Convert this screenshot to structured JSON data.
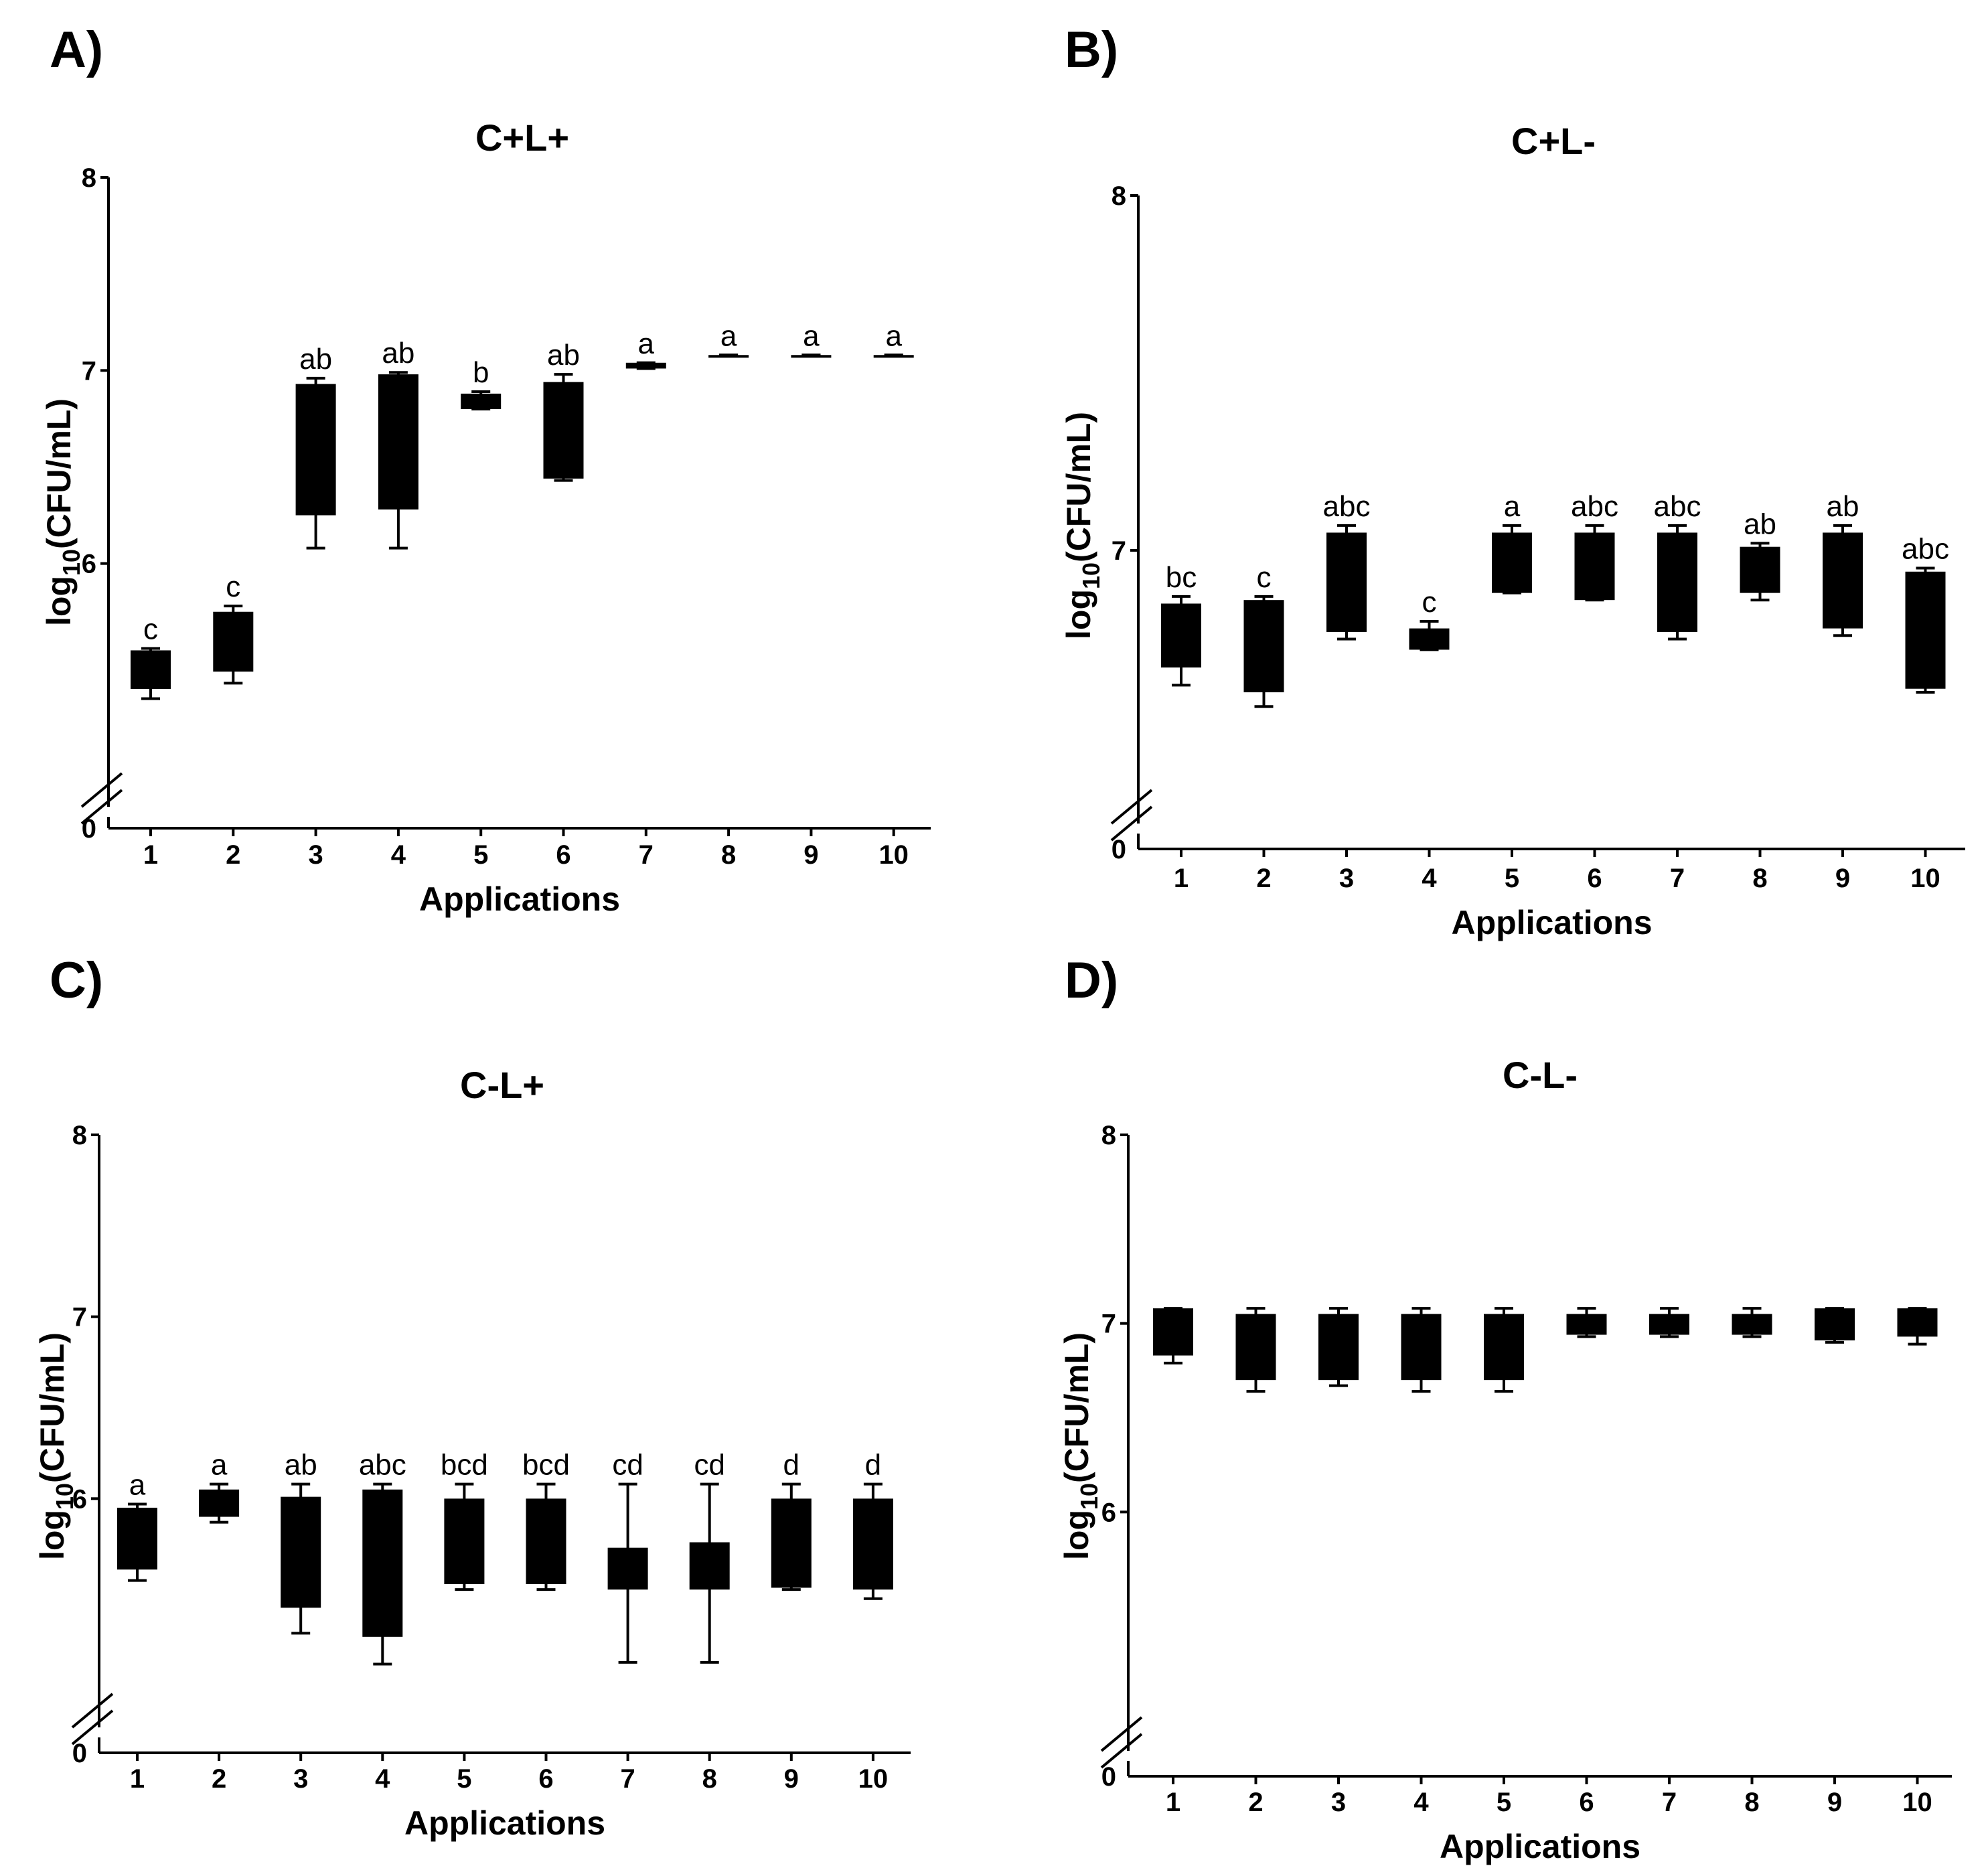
{
  "figure": {
    "panels": [
      {
        "letter": "A)",
        "title": "C+L+"
      },
      {
        "letter": "B)",
        "title": "C+L-"
      },
      {
        "letter": "C)",
        "title": "C-L+"
      },
      {
        "letter": "D)",
        "title": "C-L-"
      }
    ]
  },
  "chart_data": [
    {
      "type": "box",
      "panel": "A)",
      "title": "C+L+",
      "xlabel": "Applications",
      "ylabel": "log10(CFU/mL)",
      "categories": [
        "1",
        "2",
        "3",
        "4",
        "5",
        "6",
        "7",
        "8",
        "9",
        "10"
      ],
      "yticks": [
        0,
        6,
        7,
        8
      ],
      "y_axis_break": true,
      "ylim": [
        5,
        8
      ],
      "boxes": [
        {
          "min": 5.3,
          "q1": 5.35,
          "q3": 5.55,
          "max": 5.56
        },
        {
          "min": 5.38,
          "q1": 5.44,
          "q3": 5.75,
          "max": 5.78
        },
        {
          "min": 6.08,
          "q1": 6.25,
          "q3": 6.93,
          "max": 6.96
        },
        {
          "min": 6.08,
          "q1": 6.28,
          "q3": 6.98,
          "max": 6.99
        },
        {
          "min": 6.8,
          "q1": 6.8,
          "q3": 6.88,
          "max": 6.89
        },
        {
          "min": 6.43,
          "q1": 6.44,
          "q3": 6.94,
          "max": 6.98
        },
        {
          "min": 7.01,
          "q1": 7.01,
          "q3": 7.04,
          "max": 7.04
        },
        {
          "min": 7.08,
          "q1": 7.08,
          "q3": 7.08,
          "max": 7.08
        },
        {
          "min": 7.08,
          "q1": 7.08,
          "q3": 7.08,
          "max": 7.08
        },
        {
          "min": 7.08,
          "q1": 7.08,
          "q3": 7.08,
          "max": 7.08
        }
      ],
      "significance": [
        "c",
        "c",
        "ab",
        "ab",
        "b",
        "ab",
        "a",
        "a",
        "a",
        "a"
      ]
    },
    {
      "type": "box",
      "panel": "B)",
      "title": "C+L-",
      "xlabel": "Applications",
      "ylabel": "log10(CFU/mL)",
      "categories": [
        "1",
        "2",
        "3",
        "4",
        "5",
        "6",
        "7",
        "8",
        "9",
        "10"
      ],
      "yticks": [
        0,
        7,
        8
      ],
      "y_axis_break": true,
      "ylim": [
        6.4,
        8
      ],
      "boxes": [
        {
          "min": 6.62,
          "q1": 6.67,
          "q3": 6.85,
          "max": 6.87
        },
        {
          "min": 6.56,
          "q1": 6.6,
          "q3": 6.86,
          "max": 6.87
        },
        {
          "min": 6.75,
          "q1": 6.77,
          "q3": 7.05,
          "max": 7.07
        },
        {
          "min": 6.72,
          "q1": 6.72,
          "q3": 6.78,
          "max": 6.8
        },
        {
          "min": 6.88,
          "q1": 6.88,
          "q3": 7.05,
          "max": 7.07
        },
        {
          "min": 6.86,
          "q1": 6.86,
          "q3": 7.05,
          "max": 7.07
        },
        {
          "min": 6.75,
          "q1": 6.77,
          "q3": 7.05,
          "max": 7.07
        },
        {
          "min": 6.86,
          "q1": 6.88,
          "q3": 7.01,
          "max": 7.02
        },
        {
          "min": 6.76,
          "q1": 6.78,
          "q3": 7.05,
          "max": 7.07
        },
        {
          "min": 6.6,
          "q1": 6.61,
          "q3": 6.94,
          "max": 6.95
        }
      ],
      "significance": [
        "bc",
        "c",
        "abc",
        "c",
        "a",
        "abc",
        "abc",
        "ab",
        "ab",
        "abc"
      ]
    },
    {
      "type": "box",
      "panel": "C)",
      "title": "C-L+",
      "xlabel": "Applications",
      "ylabel": "log10(CFU/mL)",
      "categories": [
        "1",
        "2",
        "3",
        "4",
        "5",
        "6",
        "7",
        "8",
        "9",
        "10"
      ],
      "yticks": [
        0,
        6,
        7,
        8
      ],
      "y_axis_break": true,
      "ylim": [
        5,
        8
      ],
      "boxes": [
        {
          "min": 5.55,
          "q1": 5.61,
          "q3": 5.95,
          "max": 5.97
        },
        {
          "min": 5.87,
          "q1": 5.9,
          "q3": 6.05,
          "max": 6.08
        },
        {
          "min": 5.26,
          "q1": 5.4,
          "q3": 6.01,
          "max": 6.08
        },
        {
          "min": 5.09,
          "q1": 5.24,
          "q3": 6.05,
          "max": 6.08
        },
        {
          "min": 5.5,
          "q1": 5.53,
          "q3": 6.0,
          "max": 6.08
        },
        {
          "min": 5.5,
          "q1": 5.53,
          "q3": 6.0,
          "max": 6.08
        },
        {
          "min": 5.1,
          "q1": 5.5,
          "q3": 5.73,
          "max": 6.08
        },
        {
          "min": 5.1,
          "q1": 5.5,
          "q3": 5.76,
          "max": 6.08
        },
        {
          "min": 5.5,
          "q1": 5.51,
          "q3": 6.0,
          "max": 6.08
        },
        {
          "min": 5.45,
          "q1": 5.5,
          "q3": 6.0,
          "max": 6.08
        }
      ],
      "significance": [
        "a",
        "a",
        "ab",
        "abc",
        "bcd",
        "bcd",
        "cd",
        "cd",
        "d",
        "d"
      ]
    },
    {
      "type": "box",
      "panel": "D)",
      "title": "C-L-",
      "xlabel": "Applications",
      "ylabel": "log10(CFU/mL)",
      "categories": [
        "1",
        "2",
        "3",
        "4",
        "5",
        "6",
        "7",
        "8",
        "9",
        "10"
      ],
      "yticks": [
        0,
        6,
        7,
        8
      ],
      "y_axis_break": true,
      "ylim": [
        5,
        8
      ],
      "boxes": [
        {
          "min": 6.79,
          "q1": 6.83,
          "q3": 7.08,
          "max": 7.08
        },
        {
          "min": 6.64,
          "q1": 6.7,
          "q3": 7.05,
          "max": 7.08
        },
        {
          "min": 6.67,
          "q1": 6.7,
          "q3": 7.05,
          "max": 7.08
        },
        {
          "min": 6.64,
          "q1": 6.7,
          "q3": 7.05,
          "max": 7.08
        },
        {
          "min": 6.64,
          "q1": 6.7,
          "q3": 7.05,
          "max": 7.08
        },
        {
          "min": 6.93,
          "q1": 6.94,
          "q3": 7.05,
          "max": 7.08
        },
        {
          "min": 6.93,
          "q1": 6.94,
          "q3": 7.05,
          "max": 7.08
        },
        {
          "min": 6.93,
          "q1": 6.94,
          "q3": 7.05,
          "max": 7.08
        },
        {
          "min": 6.9,
          "q1": 6.91,
          "q3": 7.08,
          "max": 7.08
        },
        {
          "min": 6.89,
          "q1": 6.93,
          "q3": 7.08,
          "max": 7.08
        }
      ],
      "significance": []
    }
  ]
}
